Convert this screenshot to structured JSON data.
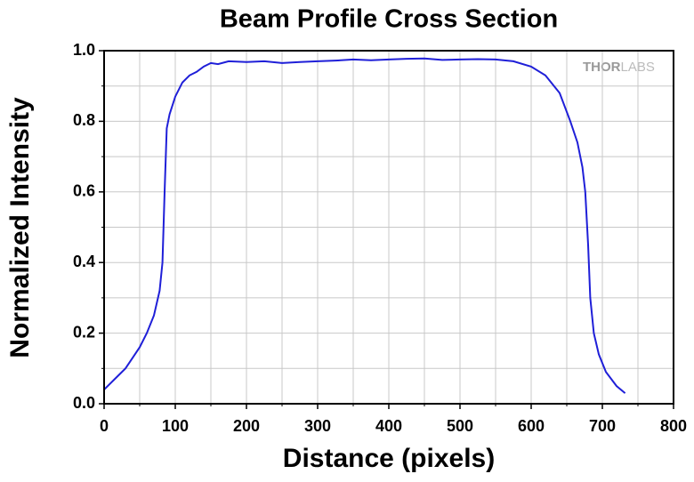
{
  "chart_data": {
    "type": "line",
    "title": "Beam Profile Cross Section",
    "x_label": "Distance (pixels)",
    "y_label": "Normalized Intensity",
    "logo": [
      "THOR",
      "LABS"
    ],
    "x": [
      0,
      10,
      20,
      30,
      40,
      50,
      60,
      70,
      78,
      82,
      85,
      88,
      92,
      100,
      110,
      120,
      130,
      140,
      150,
      160,
      175,
      200,
      225,
      250,
      275,
      300,
      325,
      350,
      375,
      400,
      425,
      450,
      475,
      500,
      525,
      550,
      575,
      600,
      620,
      640,
      655,
      665,
      672,
      676,
      680,
      683,
      688,
      695,
      705,
      720,
      732
    ],
    "series": [
      {
        "name": "Intensity",
        "color": "#1f1fd8",
        "values": [
          0.04,
          0.06,
          0.08,
          0.1,
          0.13,
          0.16,
          0.2,
          0.25,
          0.32,
          0.4,
          0.6,
          0.78,
          0.82,
          0.87,
          0.91,
          0.93,
          0.94,
          0.955,
          0.965,
          0.962,
          0.97,
          0.968,
          0.97,
          0.965,
          0.968,
          0.97,
          0.972,
          0.975,
          0.973,
          0.975,
          0.977,
          0.978,
          0.974,
          0.975,
          0.976,
          0.975,
          0.97,
          0.955,
          0.93,
          0.88,
          0.8,
          0.74,
          0.67,
          0.6,
          0.45,
          0.3,
          0.2,
          0.14,
          0.09,
          0.05,
          0.03
        ]
      }
    ],
    "xlim": [
      0,
      800
    ],
    "ylim": [
      0,
      1
    ],
    "xticks": [
      0,
      100,
      200,
      300,
      400,
      500,
      600,
      700,
      800
    ],
    "yticks": [
      {
        "value": 0,
        "label": "0.0"
      },
      {
        "value": 0.2,
        "label": "0.2"
      },
      {
        "value": 0.4,
        "label": "0.4"
      },
      {
        "value": 0.6,
        "label": "0.6"
      },
      {
        "value": 0.8,
        "label": "0.8"
      },
      {
        "value": 1,
        "label": "1.0"
      }
    ],
    "xminorticks": [
      50,
      150,
      250,
      350,
      450,
      550,
      650,
      750
    ],
    "yminorticks": [
      0.1,
      0.3,
      0.5,
      0.7,
      0.9
    ],
    "grid": true
  }
}
